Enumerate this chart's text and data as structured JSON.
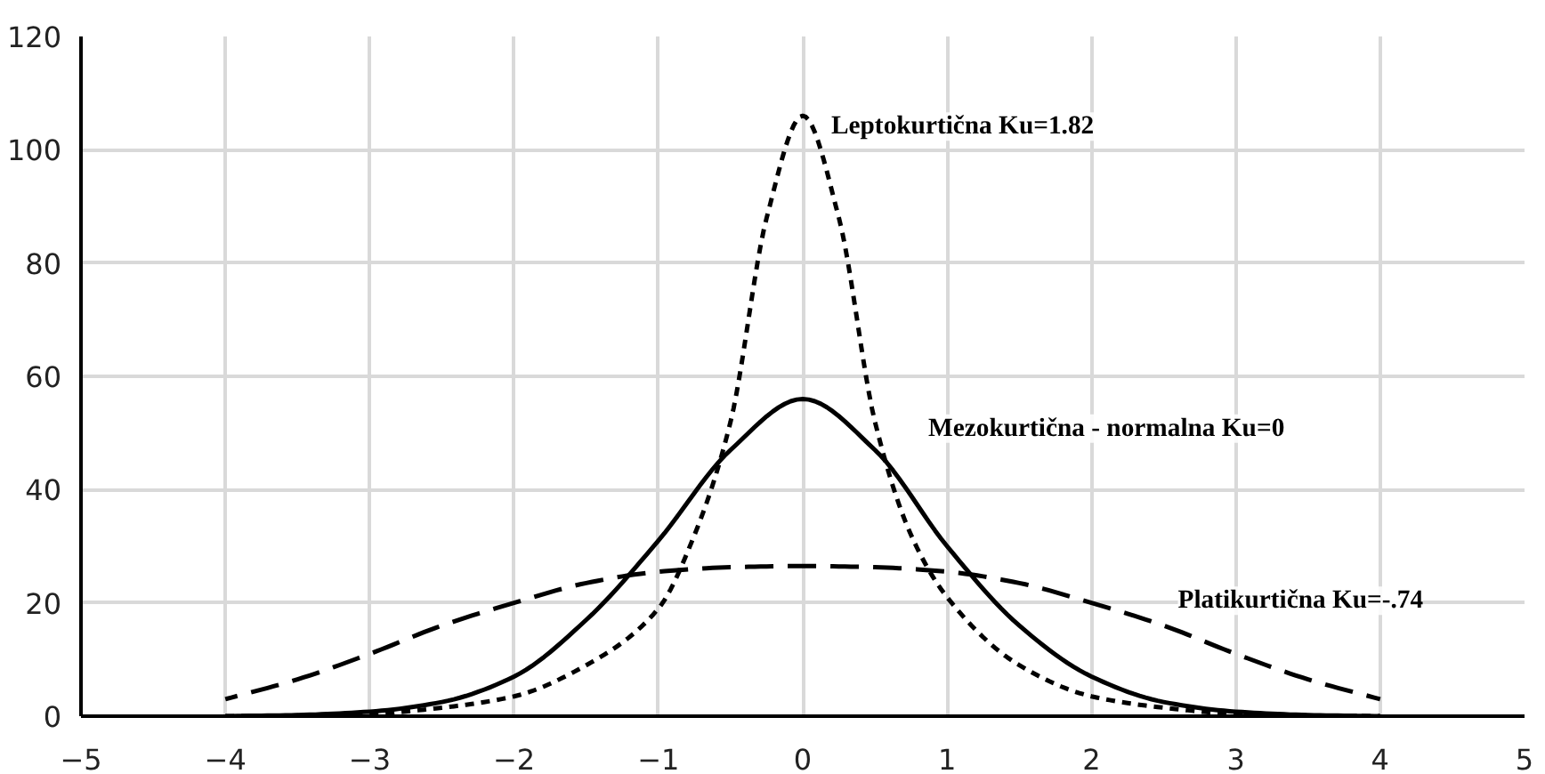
{
  "chart_data": {
    "type": "line",
    "xlim": [
      -5,
      5
    ],
    "ylim": [
      0,
      120
    ],
    "xticks": [
      -5,
      -4,
      -3,
      -2,
      -1,
      0,
      1,
      2,
      3,
      4,
      5
    ],
    "yticks": [
      0,
      20,
      40,
      60,
      80,
      100,
      120
    ],
    "grid": true,
    "legend": false,
    "marker": "none",
    "series": [
      {
        "name": "Mezokurtična - normalna Ku=0",
        "color": "#000000",
        "line_style": "solid",
        "x": [
          -4,
          -3.5,
          -3,
          -2.5,
          -2,
          -1.5,
          -1,
          -0.5,
          0,
          0.5,
          1,
          1.5,
          2,
          2.5,
          3,
          3.5,
          4
        ],
        "values": [
          0,
          0.2,
          0.8,
          2.5,
          7,
          17,
          31,
          47,
          56,
          47,
          30,
          16,
          7,
          2.5,
          0.8,
          0.2,
          0
        ]
      },
      {
        "name": "Leptokurtična Ku=1.82",
        "color": "#000000",
        "line_style": "dotted",
        "x": [
          -4,
          -3.5,
          -3,
          -2.5,
          -2,
          -1.5,
          -1,
          -0.75,
          -0.5,
          -0.25,
          0,
          0.25,
          0.5,
          0.75,
          1,
          1.5,
          2,
          2.5,
          3,
          3.5,
          4
        ],
        "values": [
          0,
          0.1,
          0.4,
          1.5,
          3.5,
          9,
          19,
          32,
          52,
          88,
          106,
          88,
          52,
          32,
          21,
          9,
          3.5,
          1.5,
          0.4,
          0.1,
          0
        ]
      },
      {
        "name": "Platikurtična Ku=-.74",
        "color": "#000000",
        "line_style": "dashed",
        "x": [
          -4,
          -3.5,
          -3,
          -2.5,
          -2,
          -1.5,
          -1,
          -0.5,
          0,
          0.5,
          1,
          1.5,
          2,
          2.5,
          3,
          3.5,
          4
        ],
        "values": [
          3,
          6.5,
          11,
          16,
          20,
          23.5,
          25.5,
          26.3,
          26.5,
          26.3,
          25.5,
          23.5,
          20,
          16,
          11,
          6.5,
          3
        ]
      }
    ]
  }
}
